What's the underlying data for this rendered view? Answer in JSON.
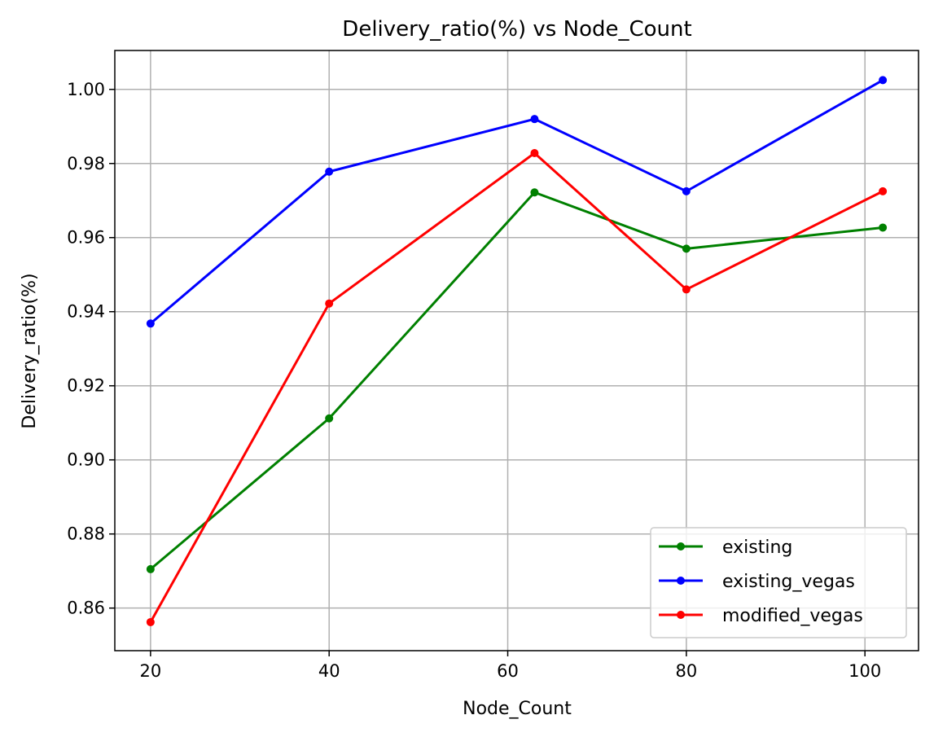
{
  "chart_data": {
    "type": "line",
    "title": "Delivery_ratio(%) vs Node_Count",
    "xlabel": "Node_Count",
    "ylabel": "Delivery_ratio(%)",
    "x": [
      20,
      40,
      63,
      80,
      102
    ],
    "xlim": [
      16,
      106
    ],
    "ylim": [
      0.8485,
      1.0105
    ],
    "xticks": [
      20,
      40,
      60,
      80,
      100
    ],
    "yticks": [
      0.86,
      0.88,
      0.9,
      0.92,
      0.94,
      0.96,
      0.98,
      1.0
    ],
    "xtick_labels": [
      "20",
      "40",
      "60",
      "80",
      "100"
    ],
    "ytick_labels": [
      "0.86",
      "0.88",
      "0.90",
      "0.92",
      "0.94",
      "0.96",
      "0.98",
      "1.00"
    ],
    "grid": true,
    "legend_position": "lower-right",
    "series": [
      {
        "name": "existing",
        "color": "#008000",
        "values": [
          0.8705,
          0.9112,
          0.9722,
          0.957,
          0.9627
        ]
      },
      {
        "name": "existing_vegas",
        "color": "#0000ff",
        "values": [
          0.9368,
          0.9778,
          0.992,
          0.9725,
          1.0025
        ]
      },
      {
        "name": "modified_vegas",
        "color": "#ff0000",
        "values": [
          0.8562,
          0.9422,
          0.9828,
          0.946,
          0.9725
        ]
      }
    ]
  }
}
